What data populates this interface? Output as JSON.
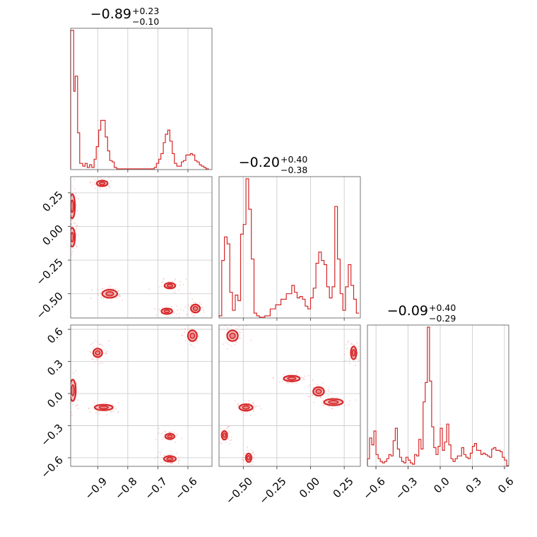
{
  "colors": {
    "series": "#d62728",
    "grid": "#c8c8c8"
  },
  "chart_data": {
    "type": "corner",
    "parameters": [
      {
        "summary": {
          "median": "−0.89",
          "plus": "+0.23",
          "minus": "−0.10"
        },
        "range": [
          -0.99,
          -0.52
        ],
        "ticks": [
          -0.9,
          -0.8,
          -0.7,
          -0.6
        ],
        "tick_labels": [
          "−0.9",
          "−0.8",
          "−0.7",
          "−0.6"
        ],
        "histogram": [
          [
            -0.99,
            1.0
          ],
          [
            -0.98,
            0.56
          ],
          [
            -0.975,
            0.67
          ],
          [
            -0.967,
            0.26
          ],
          [
            -0.96,
            0.04
          ],
          [
            -0.95,
            0.02
          ],
          [
            -0.942,
            0.04
          ],
          [
            -0.935,
            0.01
          ],
          [
            -0.927,
            0.03
          ],
          [
            -0.92,
            0.01
          ],
          [
            -0.912,
            0.07
          ],
          [
            -0.905,
            0.16
          ],
          [
            -0.897,
            0.28
          ],
          [
            -0.89,
            0.35
          ],
          [
            -0.882,
            0.35
          ],
          [
            -0.875,
            0.23
          ],
          [
            -0.867,
            0.13
          ],
          [
            -0.86,
            0.06
          ],
          [
            -0.852,
            0.05
          ],
          [
            -0.845,
            0.01
          ],
          [
            -0.837,
            0.0
          ],
          [
            -0.83,
            0.0
          ],
          [
            -0.72,
            0.0
          ],
          [
            -0.712,
            0.01
          ],
          [
            -0.705,
            0.04
          ],
          [
            -0.697,
            0.07
          ],
          [
            -0.69,
            0.11
          ],
          [
            -0.682,
            0.19
          ],
          [
            -0.675,
            0.25
          ],
          [
            -0.667,
            0.28
          ],
          [
            -0.66,
            0.2
          ],
          [
            -0.652,
            0.11
          ],
          [
            -0.645,
            0.04
          ],
          [
            -0.637,
            0.02
          ],
          [
            -0.63,
            0.02
          ],
          [
            -0.622,
            0.05
          ],
          [
            -0.615,
            0.06
          ],
          [
            -0.607,
            0.1
          ],
          [
            -0.6,
            0.1
          ],
          [
            -0.592,
            0.11
          ],
          [
            -0.585,
            0.1
          ],
          [
            -0.577,
            0.06
          ],
          [
            -0.57,
            0.05
          ],
          [
            -0.562,
            0.03
          ],
          [
            -0.555,
            0.02
          ],
          [
            -0.547,
            0.01
          ],
          [
            -0.54,
            0.0
          ]
        ]
      },
      {
        "summary": {
          "median": "−0.20",
          "plus": "+0.40",
          "minus": "−0.38"
        },
        "range": [
          -0.68,
          0.37
        ],
        "ticks": [
          -0.5,
          -0.25,
          0.0,
          0.25
        ],
        "tick_labels": [
          "−0.50",
          "−0.25",
          "0.00",
          "0.25"
        ],
        "histogram": [
          [
            -0.68,
            0.01
          ],
          [
            -0.66,
            0.41
          ],
          [
            -0.64,
            0.58
          ],
          [
            -0.62,
            0.53
          ],
          [
            -0.6,
            0.18
          ],
          [
            -0.58,
            0.05
          ],
          [
            -0.56,
            0.16
          ],
          [
            -0.54,
            0.12
          ],
          [
            -0.52,
            0.6
          ],
          [
            -0.5,
            0.67
          ],
          [
            -0.48,
            1.0
          ],
          [
            -0.46,
            0.78
          ],
          [
            -0.44,
            0.42
          ],
          [
            -0.42,
            0.03
          ],
          [
            -0.4,
            0.01
          ],
          [
            -0.38,
            0.0
          ],
          [
            -0.34,
            0.01
          ],
          [
            -0.3,
            0.06
          ],
          [
            -0.26,
            0.09
          ],
          [
            -0.22,
            0.13
          ],
          [
            -0.18,
            0.17
          ],
          [
            -0.14,
            0.23
          ],
          [
            -0.12,
            0.18
          ],
          [
            -0.1,
            0.14
          ],
          [
            -0.08,
            0.15
          ],
          [
            -0.06,
            0.13
          ],
          [
            -0.04,
            0.08
          ],
          [
            -0.02,
            0.06
          ],
          [
            0.0,
            0.14
          ],
          [
            0.02,
            0.21
          ],
          [
            0.04,
            0.39
          ],
          [
            0.06,
            0.47
          ],
          [
            0.08,
            0.41
          ],
          [
            0.1,
            0.38
          ],
          [
            0.12,
            0.22
          ],
          [
            0.14,
            0.14
          ],
          [
            0.16,
            0.22
          ],
          [
            0.18,
            0.8
          ],
          [
            0.2,
            0.42
          ],
          [
            0.22,
            0.17
          ],
          [
            0.24,
            0.05
          ],
          [
            0.26,
            0.22
          ],
          [
            0.28,
            0.38
          ],
          [
            0.3,
            0.23
          ],
          [
            0.32,
            0.13
          ],
          [
            0.34,
            0.03
          ]
        ]
      },
      {
        "summary": {
          "median": "−0.09",
          "plus": "+0.40",
          "minus": "−0.29"
        },
        "range": [
          -0.68,
          0.64
        ],
        "ticks": [
          -0.6,
          -0.3,
          0.0,
          0.3,
          0.6
        ],
        "tick_labels": [
          "−0.6",
          "−0.3",
          "0.0",
          "0.3",
          "0.6"
        ],
        "histogram": [
          [
            -0.68,
            0.05
          ],
          [
            -0.66,
            0.2
          ],
          [
            -0.64,
            0.15
          ],
          [
            -0.62,
            0.25
          ],
          [
            -0.6,
            0.08
          ],
          [
            -0.58,
            0.05
          ],
          [
            -0.56,
            0.03
          ],
          [
            -0.54,
            0.02
          ],
          [
            -0.52,
            0.03
          ],
          [
            -0.5,
            0.05
          ],
          [
            -0.48,
            0.08
          ],
          [
            -0.46,
            0.07
          ],
          [
            -0.44,
            0.18
          ],
          [
            -0.42,
            0.27
          ],
          [
            -0.4,
            0.12
          ],
          [
            -0.38,
            0.06
          ],
          [
            -0.36,
            0.03
          ],
          [
            -0.34,
            0.02
          ],
          [
            -0.32,
            0.06
          ],
          [
            -0.3,
            0.04
          ],
          [
            -0.28,
            0.02
          ],
          [
            -0.26,
            0.01
          ],
          [
            -0.24,
            0.08
          ],
          [
            -0.22,
            0.07
          ],
          [
            -0.2,
            0.19
          ],
          [
            -0.18,
            0.12
          ],
          [
            -0.16,
            0.46
          ],
          [
            -0.14,
            0.6
          ],
          [
            -0.12,
            1.0
          ],
          [
            -0.1,
            0.61
          ],
          [
            -0.08,
            0.28
          ],
          [
            -0.06,
            0.13
          ],
          [
            -0.04,
            0.08
          ],
          [
            -0.02,
            0.14
          ],
          [
            0.0,
            0.27
          ],
          [
            0.02,
            0.11
          ],
          [
            0.04,
            0.17
          ],
          [
            0.06,
            0.3
          ],
          [
            0.08,
            0.15
          ],
          [
            0.1,
            0.05
          ],
          [
            0.12,
            0.03
          ],
          [
            0.14,
            0.05
          ],
          [
            0.16,
            0.07
          ],
          [
            0.18,
            0.07
          ],
          [
            0.2,
            0.13
          ],
          [
            0.22,
            0.08
          ],
          [
            0.24,
            0.06
          ],
          [
            0.26,
            0.05
          ],
          [
            0.28,
            0.09
          ],
          [
            0.3,
            0.14
          ],
          [
            0.32,
            0.16
          ],
          [
            0.34,
            0.11
          ],
          [
            0.36,
            0.11
          ],
          [
            0.38,
            0.08
          ],
          [
            0.4,
            0.09
          ],
          [
            0.42,
            0.08
          ],
          [
            0.44,
            0.07
          ],
          [
            0.46,
            0.06
          ],
          [
            0.48,
            0.12
          ],
          [
            0.5,
            0.13
          ],
          [
            0.52,
            0.11
          ],
          [
            0.54,
            0.11
          ],
          [
            0.56,
            0.1
          ],
          [
            0.58,
            0.06
          ],
          [
            0.6,
            0.04
          ],
          [
            0.62,
            0.0
          ]
        ]
      }
    ],
    "pair_clusters": [
      {
        "x_param": 0,
        "y_param": 1,
        "clusters": [
          {
            "x": -0.885,
            "y": 0.32,
            "sx": 0.018,
            "sy": 0.02
          },
          {
            "x": -0.985,
            "y": 0.15,
            "sx": 0.008,
            "sy": 0.09
          },
          {
            "x": -0.985,
            "y": -0.08,
            "sx": 0.008,
            "sy": 0.07
          },
          {
            "x": -0.86,
            "y": -0.5,
            "sx": 0.025,
            "sy": 0.03
          },
          {
            "x": -0.66,
            "y": -0.44,
            "sx": 0.018,
            "sy": 0.015
          },
          {
            "x": -0.67,
            "y": -0.63,
            "sx": 0.018,
            "sy": 0.015
          },
          {
            "x": -0.575,
            "y": -0.61,
            "sx": 0.015,
            "sy": 0.03
          }
        ]
      },
      {
        "x_param": 0,
        "y_param": 2,
        "clusters": [
          {
            "x": -0.9,
            "y": 0.38,
            "sx": 0.015,
            "sy": 0.04
          },
          {
            "x": -0.585,
            "y": 0.54,
            "sx": 0.015,
            "sy": 0.05
          },
          {
            "x": -0.983,
            "y": 0.03,
            "sx": 0.01,
            "sy": 0.1
          },
          {
            "x": -0.88,
            "y": -0.13,
            "sx": 0.03,
            "sy": 0.02
          },
          {
            "x": -0.66,
            "y": -0.4,
            "sx": 0.015,
            "sy": 0.025
          },
          {
            "x": -0.66,
            "y": -0.61,
            "sx": 0.02,
            "sy": 0.02
          }
        ]
      },
      {
        "x_param": 1,
        "y_param": 2,
        "clusters": [
          {
            "x": -0.58,
            "y": 0.54,
            "sx": 0.04,
            "sy": 0.05
          },
          {
            "x": -0.14,
            "y": 0.14,
            "sx": 0.06,
            "sy": 0.02
          },
          {
            "x": 0.06,
            "y": 0.02,
            "sx": 0.04,
            "sy": 0.04
          },
          {
            "x": 0.17,
            "y": -0.08,
            "sx": 0.07,
            "sy": 0.03
          },
          {
            "x": 0.32,
            "y": 0.38,
            "sx": 0.02,
            "sy": 0.06
          },
          {
            "x": -0.48,
            "y": -0.13,
            "sx": 0.05,
            "sy": 0.03
          },
          {
            "x": -0.64,
            "y": -0.39,
            "sx": 0.02,
            "sy": 0.04
          },
          {
            "x": -0.46,
            "y": -0.6,
            "sx": 0.02,
            "sy": 0.04
          }
        ]
      }
    ]
  }
}
